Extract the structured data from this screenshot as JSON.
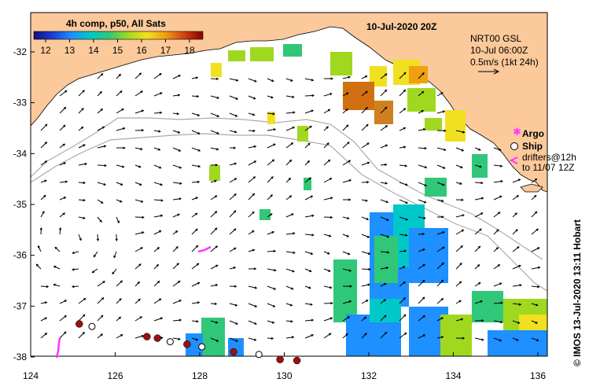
{
  "colorbar": {
    "title": "4h comp, p50, All Sats",
    "ticks": [
      "12",
      "13",
      "14",
      "15",
      "16",
      "17",
      "18"
    ],
    "colors": [
      "#10107a",
      "#1a3dd8",
      "#1e90ff",
      "#00c8c8",
      "#30c878",
      "#a0d820",
      "#f0e020",
      "#f0a010",
      "#d04010",
      "#8b0000"
    ]
  },
  "map": {
    "date_title": "10-Jul-2020 20Z",
    "lat_ticks": [
      "-32",
      "-33",
      "-34",
      "-35",
      "-36",
      "-37",
      "-38"
    ],
    "lon_ticks": [
      "124",
      "126",
      "128",
      "130",
      "132",
      "134",
      "136"
    ],
    "land_color": "#fbc99a",
    "contour_color": "#aaaaaa"
  },
  "currents": {
    "source": "NRT00 GSL",
    "time": "10-Jul 06:00Z",
    "scale": "0.5m/s (1kt 24h)"
  },
  "legend": {
    "argo": "Argo",
    "ship": "Ship",
    "drifters_line1": "drifters@12h",
    "drifters_line2": "to 11/07 12Z",
    "argo_color": "#ff33ff",
    "ship_color": "#000000",
    "drifter_color": "#ff33ff"
  },
  "credit": {
    "text": "©  IMOS 13-Jul-2020 13:11 Hobart"
  },
  "markers": {
    "dots": [
      {
        "lon": 125.15,
        "lat": -37.35
      },
      {
        "lon": 126.75,
        "lat": -37.6
      },
      {
        "lon": 127.0,
        "lat": -37.63
      },
      {
        "lon": 127.7,
        "lat": -37.75
      },
      {
        "lon": 128.8,
        "lat": -37.9
      },
      {
        "lon": 129.9,
        "lat": -38.05
      },
      {
        "lon": 130.3,
        "lat": -38.07
      }
    ],
    "circles": [
      {
        "lon": 125.45,
        "lat": -37.4
      },
      {
        "lon": 127.3,
        "lat": -37.7
      },
      {
        "lon": 128.05,
        "lat": -37.8
      },
      {
        "lon": 129.4,
        "lat": -37.95
      }
    ],
    "dot_color": "#9a1010"
  }
}
